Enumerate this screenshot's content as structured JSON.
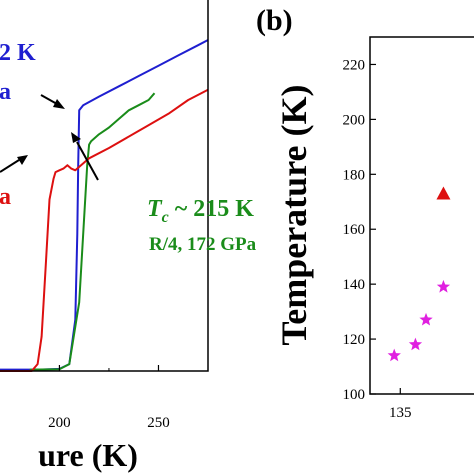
{
  "panel_b_label": "(b)",
  "chart_data": [
    {
      "type": "line",
      "title": "",
      "xlabel": "ure (K)",
      "ylabel": "",
      "xlim": [
        170,
        275
      ],
      "x_ticks": [
        200,
        250
      ],
      "x_tick_labels": [
        "200",
        "250"
      ],
      "series": [
        {
          "name": "",
          "color": "#1f1fd0",
          "x": [
            170,
            190,
            200,
            205,
            208,
            209,
            209.5,
            210,
            212,
            220,
            230,
            240,
            250,
            260,
            270,
            275
          ],
          "y": [
            0.004,
            0.004,
            0.006,
            0.02,
            0.15,
            0.4,
            0.6,
            0.76,
            0.775,
            0.8,
            0.83,
            0.86,
            0.89,
            0.92,
            0.95,
            0.965
          ]
        },
        {
          "name": "",
          "color": "#1a8c1a",
          "x": [
            185,
            200,
            205,
            210,
            212,
            214,
            215,
            216,
            220,
            225,
            230,
            235,
            240,
            245,
            248
          ],
          "y": [
            0.004,
            0.005,
            0.02,
            0.2,
            0.4,
            0.6,
            0.66,
            0.67,
            0.69,
            0.71,
            0.735,
            0.76,
            0.775,
            0.79,
            0.81
          ]
        },
        {
          "name": "",
          "color": "#dd1010",
          "x": [
            170,
            186,
            189,
            191,
            193,
            195,
            197,
            198,
            200,
            202,
            204,
            206,
            208,
            215,
            225,
            240,
            255,
            265,
            275
          ],
          "y": [
            0.0,
            0.0,
            0.02,
            0.1,
            0.3,
            0.5,
            0.56,
            0.58,
            0.585,
            0.59,
            0.6,
            0.59,
            0.585,
            0.62,
            0.65,
            0.7,
            0.75,
            0.79,
            0.82
          ]
        }
      ],
      "annotations": [
        {
          "text": "2 K",
          "color": "#1f1fd0"
        },
        {
          "text": "a",
          "color": "#1f1fd0"
        },
        {
          "text": "a",
          "color": "#dd1010"
        },
        {
          "text_prefix": "T",
          "text_sub": "c",
          "text_suffix": " ~ 215 K",
          "color": "#1a8c1a"
        },
        {
          "text": "R/4, 172 GPa",
          "color": "#1a8c1a"
        }
      ]
    },
    {
      "type": "scatter",
      "title": "",
      "xlabel": "",
      "ylabel": "Temperature (K)",
      "xlim": [
        131,
        145
      ],
      "ylim": [
        100,
        230
      ],
      "x_ticks": [
        135
      ],
      "y_ticks": [
        100,
        120,
        140,
        160,
        180,
        200,
        220
      ],
      "series": [
        {
          "name": "",
          "marker": "star",
          "color": "#e020e0",
          "x": [
            134.2,
            137.0,
            138.4,
            140.7
          ],
          "y": [
            114,
            118,
            127,
            139
          ]
        },
        {
          "name": "",
          "marker": "triangle",
          "color": "#dd1010",
          "x": [
            140.7
          ],
          "y": [
            173
          ]
        }
      ]
    }
  ]
}
